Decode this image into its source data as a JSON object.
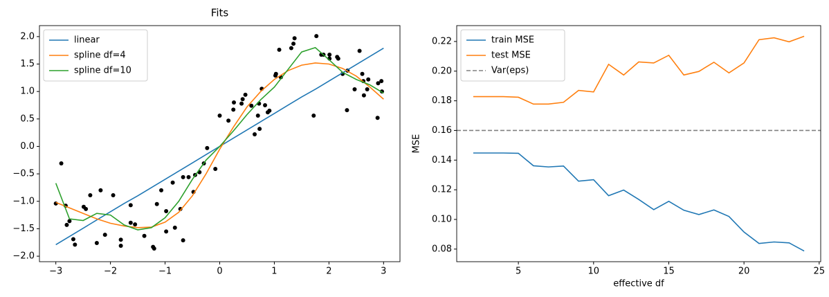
{
  "chart_data": [
    {
      "type": "line",
      "title": "Fits",
      "legend": "upper left",
      "xlim": [
        -3.3,
        3.3
      ],
      "ylim": [
        -2.1,
        2.2
      ],
      "xticks": [
        {
          "value": -3,
          "label": "−3"
        },
        {
          "value": -2,
          "label": "−2"
        },
        {
          "value": -1,
          "label": "−1"
        },
        0,
        1,
        2,
        3
      ],
      "yticks": [
        {
          "value": -2,
          "label": "−2.0"
        },
        {
          "value": -1.5,
          "label": "−1.5"
        },
        {
          "value": -1,
          "label": "−1.0"
        },
        {
          "value": -0.5,
          "label": "−0.5"
        },
        {
          "value": 0,
          "label": "0.0"
        },
        {
          "value": 0.5,
          "label": "0.5"
        },
        {
          "value": 1,
          "label": "1.0"
        },
        {
          "value": 1.5,
          "label": "1.5"
        },
        {
          "value": 2,
          "label": "2.0"
        }
      ],
      "x": [
        -3,
        -2.75,
        -2.5,
        -2.25,
        -2,
        -1.75,
        -1.5,
        -1.25,
        -1,
        -0.75,
        -0.5,
        -0.25,
        0,
        0.25,
        0.5,
        0.75,
        1,
        1.25,
        1.5,
        1.75,
        2,
        2.25,
        2.5,
        2.75,
        3
      ],
      "series": [
        {
          "type": "scatter",
          "color": "black",
          "x": [
            -3.0,
            -2.9,
            -2.82,
            -2.8,
            -2.75,
            -2.68,
            -2.65,
            -2.37,
            -2.49,
            -2.45,
            -2.25,
            -2.18,
            -2.1,
            -1.95,
            -1.81,
            -1.81,
            -1.63,
            -1.63,
            -1.55,
            -1.38,
            -1.22,
            -1.2,
            -1.15,
            -1.07,
            -0.98,
            -0.98,
            -0.86,
            -0.82,
            -0.72,
            -0.67,
            -0.67,
            -0.57,
            -0.48,
            -0.45,
            -0.37,
            -0.29,
            -0.23,
            -0.08,
            0.0,
            0.16,
            0.25,
            0.26,
            0.4,
            0.42,
            0.47,
            0.58,
            0.64,
            0.7,
            0.72,
            0.73,
            0.77,
            0.83,
            0.88,
            0.91,
            1.02,
            1.03,
            1.09,
            1.12,
            1.31,
            1.35,
            1.37,
            1.72,
            1.77,
            1.86,
            1.9,
            2.01,
            2.01,
            2.15,
            2.17,
            2.25,
            2.33,
            2.34,
            2.47,
            2.56,
            2.61,
            2.63,
            2.64,
            2.7,
            2.72,
            2.89,
            2.96,
            2.97,
            2.9
          ],
          "values": [
            -1.04,
            -0.31,
            -1.08,
            -1.43,
            -1.36,
            -1.69,
            -1.79,
            -0.89,
            -1.1,
            -1.14,
            -1.76,
            -0.8,
            -1.61,
            -0.89,
            -1.7,
            -1.81,
            -1.07,
            -1.39,
            -1.42,
            -1.63,
            -1.83,
            -1.86,
            -1.05,
            -0.8,
            -1.55,
            -1.18,
            -0.66,
            -1.48,
            -1.14,
            -0.56,
            -1.71,
            -0.56,
            -0.83,
            -0.52,
            -0.47,
            -0.31,
            -0.03,
            -0.41,
            0.56,
            0.47,
            0.67,
            0.8,
            0.78,
            0.86,
            0.94,
            0.74,
            0.22,
            0.56,
            0.78,
            0.32,
            1.05,
            0.75,
            0.62,
            0.65,
            1.29,
            1.32,
            1.76,
            1.26,
            1.79,
            1.87,
            1.97,
            0.56,
            2.01,
            1.67,
            1.67,
            1.67,
            1.6,
            1.63,
            1.6,
            1.32,
            0.66,
            1.38,
            1.04,
            1.74,
            1.32,
            1.19,
            0.93,
            1.04,
            1.22,
            0.52,
            1.19,
            1.0,
            1.15
          ]
        },
        {
          "name": "linear",
          "color": "#1f77b4",
          "values": [
            -1.79,
            -1.64,
            -1.49,
            -1.34,
            -1.19,
            -1.04,
            -0.9,
            -0.75,
            -0.6,
            -0.45,
            -0.3,
            -0.15,
            0.0,
            0.15,
            0.3,
            0.45,
            0.6,
            0.75,
            0.9,
            1.04,
            1.19,
            1.34,
            1.49,
            1.64,
            1.79
          ]
        },
        {
          "name": "spline df=4",
          "color": "#ff7f0e",
          "values": [
            -1.02,
            -1.12,
            -1.22,
            -1.32,
            -1.4,
            -1.45,
            -1.48,
            -1.47,
            -1.38,
            -1.2,
            -0.9,
            -0.5,
            -0.05,
            0.35,
            0.72,
            1.0,
            1.22,
            1.38,
            1.48,
            1.52,
            1.5,
            1.42,
            1.28,
            1.08,
            0.86
          ]
        },
        {
          "name": "spline df=10",
          "color": "#2ca02c",
          "values": [
            -0.67,
            -1.32,
            -1.35,
            -1.22,
            -1.25,
            -1.43,
            -1.52,
            -1.48,
            -1.3,
            -1.0,
            -0.6,
            -0.25,
            0.0,
            0.28,
            0.58,
            0.85,
            1.08,
            1.4,
            1.72,
            1.8,
            1.58,
            1.35,
            1.22,
            1.12,
            0.97
          ]
        }
      ]
    },
    {
      "type": "line",
      "xlabel": "effective df",
      "ylabel": "MSE",
      "legend": "upper left",
      "xlim": [
        0.9,
        25.1
      ],
      "ylim": [
        0.0715,
        0.2307
      ],
      "xticks": [
        5,
        10,
        15,
        20,
        25
      ],
      "yticks": [
        0.08,
        {
          "value": 0.1,
          "label": "0.10"
        },
        0.12,
        0.14,
        0.16,
        0.18,
        {
          "value": 0.2,
          "label": "0.20"
        },
        0.22
      ],
      "x": [
        2,
        3,
        4,
        5,
        6,
        7,
        8,
        9,
        10,
        11,
        12,
        13,
        14,
        15,
        16,
        17,
        18,
        19,
        20,
        21,
        22,
        23,
        24
      ],
      "series": [
        {
          "name": "train MSE",
          "color": "#1f77b4",
          "values": [
            0.1448,
            0.1448,
            0.1448,
            0.1446,
            0.1362,
            0.1354,
            0.136,
            0.1258,
            0.1268,
            0.116,
            0.1198,
            0.1135,
            0.1066,
            0.1122,
            0.1062,
            0.1033,
            0.1064,
            0.102,
            0.0915,
            0.0838,
            0.0848,
            0.0842,
            0.0787
          ]
        },
        {
          "name": "test MSE",
          "color": "#ff7f0e",
          "values": [
            0.1828,
            0.1828,
            0.1828,
            0.1824,
            0.1778,
            0.1778,
            0.179,
            0.187,
            0.186,
            0.2046,
            0.1974,
            0.2062,
            0.2055,
            0.2107,
            0.1974,
            0.1998,
            0.206,
            0.1988,
            0.2055,
            0.2212,
            0.2225,
            0.2198,
            0.2235
          ]
        },
        {
          "name": "Var(eps)",
          "color": "gray",
          "dashed": true,
          "hline": 0.16
        }
      ]
    }
  ]
}
